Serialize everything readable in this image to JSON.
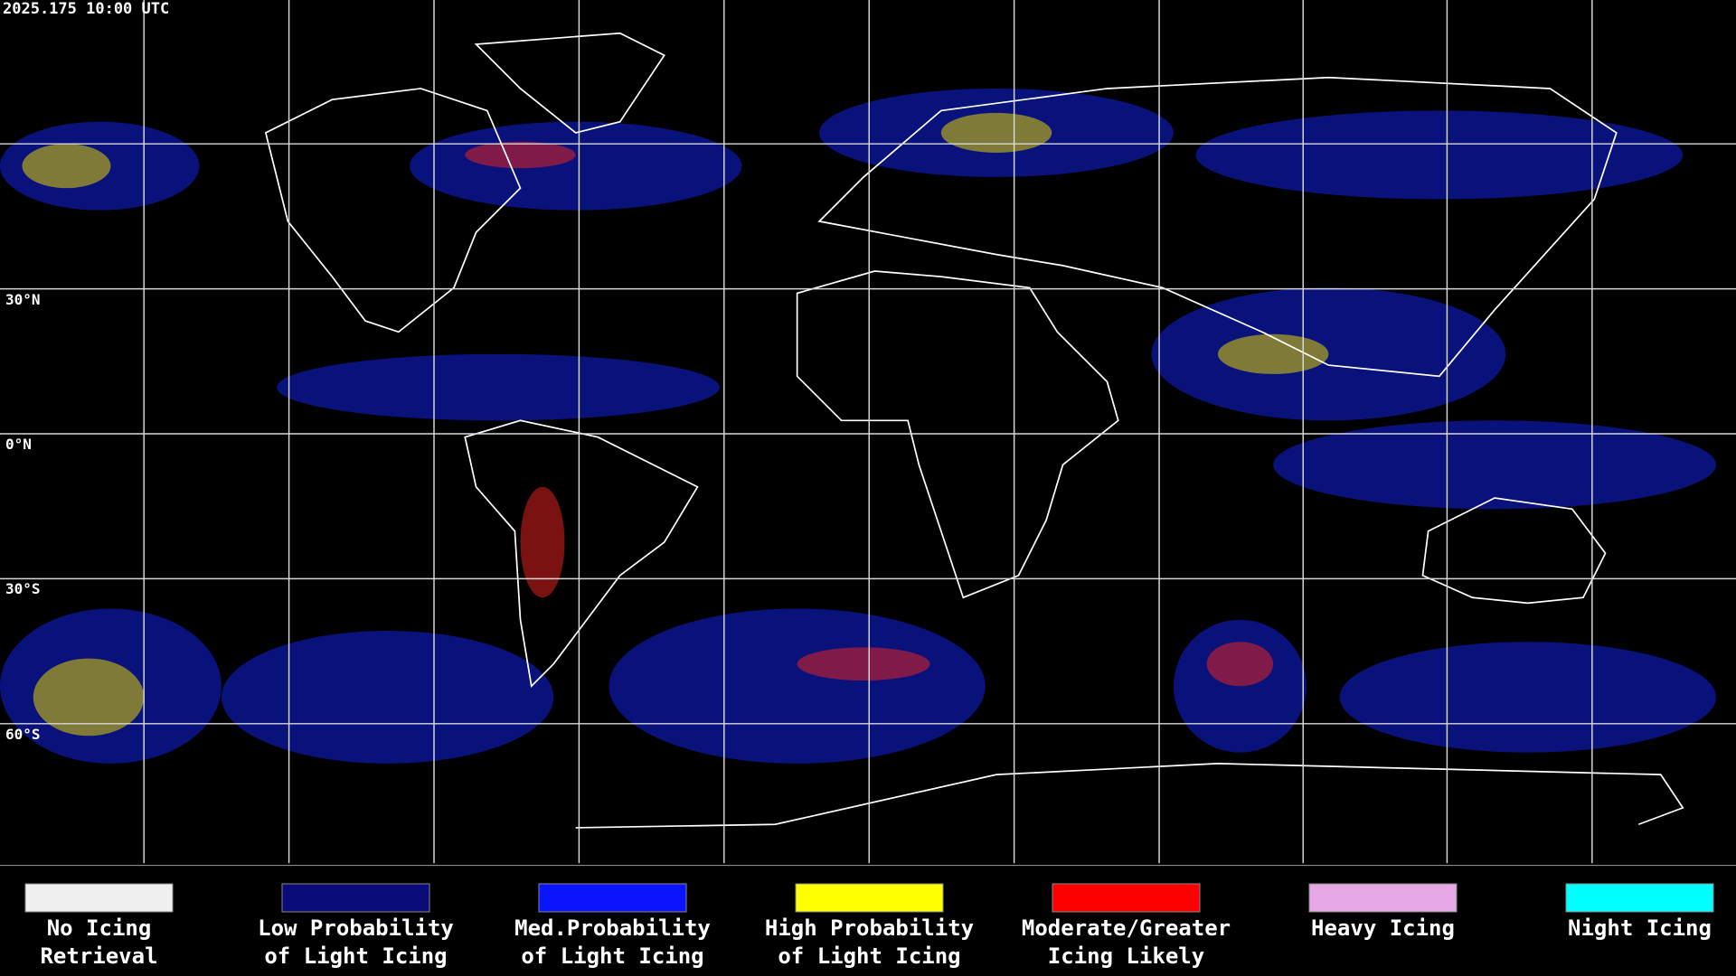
{
  "header": {
    "timestamp": "2025.175 10:00 UTC"
  },
  "map": {
    "lat_labels": [
      "30°N",
      "0°N",
      "30°S",
      "60°S"
    ]
  },
  "legend": {
    "items": [
      {
        "lines": [
          "No Icing",
          "Retrieval"
        ],
        "color": "#f0f0f0"
      },
      {
        "lines": [
          "Low Probability",
          "of Light Icing"
        ],
        "color": "#0a0a78"
      },
      {
        "lines": [
          "Med.Probability",
          "of Light Icing"
        ],
        "color": "#0a14ff"
      },
      {
        "lines": [
          "High Probability",
          "of Light Icing"
        ],
        "color": "#ffff00"
      },
      {
        "lines": [
          "Moderate/Greater",
          "Icing Likely"
        ],
        "color": "#ff0000"
      },
      {
        "lines": [
          "Heavy Icing"
        ],
        "color": "#e6a8e6"
      },
      {
        "lines": [
          "Night Icing"
        ],
        "color": "#00ffff"
      }
    ]
  }
}
